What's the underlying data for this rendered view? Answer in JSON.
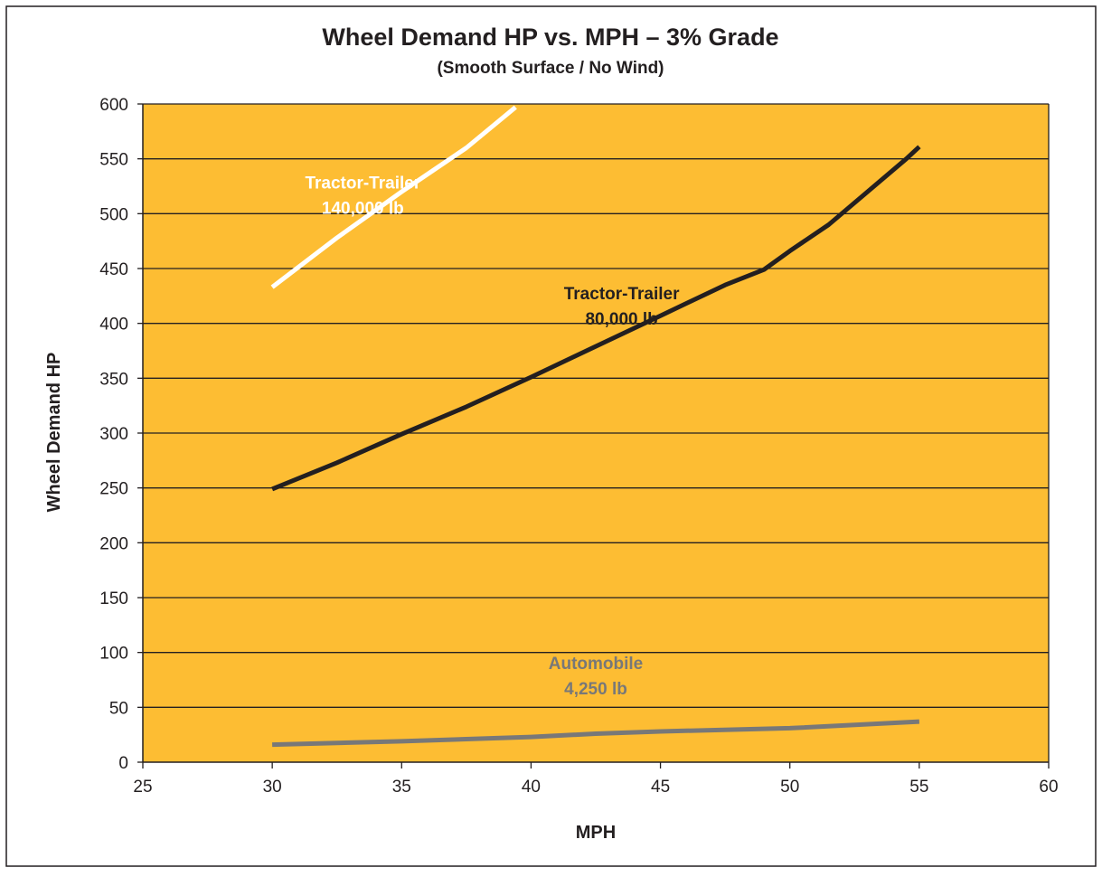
{
  "chart_data": {
    "type": "line",
    "title": "Wheel Demand HP vs. MPH – 3% Grade",
    "subtitle": "(Smooth Surface / No Wind)",
    "xlabel": "MPH",
    "ylabel": "Wheel Demand HP",
    "xlim": [
      25,
      60
    ],
    "ylim": [
      0,
      600
    ],
    "x_ticks": [
      25,
      30,
      35,
      40,
      45,
      50,
      55,
      60
    ],
    "y_ticks": [
      0,
      50,
      100,
      150,
      200,
      250,
      300,
      350,
      400,
      450,
      500,
      550,
      600
    ],
    "grid": "horizontal",
    "plot_background": "#fdbd33",
    "series": [
      {
        "name": "Tractor-Trailer 140,000 lb",
        "label_lines": [
          "Tractor-Trailer",
          "140,000 lb"
        ],
        "label_at": [
          33.5,
          523
        ],
        "color": "#ffffff",
        "x": [
          30,
          32.5,
          35,
          37.5,
          39.4
        ],
        "y": [
          433,
          478,
          520,
          560,
          597
        ]
      },
      {
        "name": "Tractor-Trailer 80,000 lb",
        "label_lines": [
          "Tractor-Trailer",
          "80,000 lb"
        ],
        "label_at": [
          43.5,
          422
        ],
        "color": "#231f20",
        "x": [
          30,
          32.5,
          35,
          37.5,
          40,
          42.5,
          45,
          47.5,
          49,
          50,
          51.5,
          53,
          54.5,
          55
        ],
        "y": [
          249,
          273,
          299,
          324,
          351,
          379,
          407,
          435,
          449,
          466,
          490,
          520,
          550,
          561
        ]
      },
      {
        "name": "Automobile 4,250 lb",
        "label_lines": [
          "Automobile",
          "4,250 lb"
        ],
        "label_at": [
          42.5,
          85
        ],
        "color": "#787878",
        "x": [
          30,
          35,
          40,
          42.5,
          45,
          50,
          55
        ],
        "y": [
          16,
          19,
          23,
          26,
          28,
          31,
          37
        ]
      }
    ]
  }
}
